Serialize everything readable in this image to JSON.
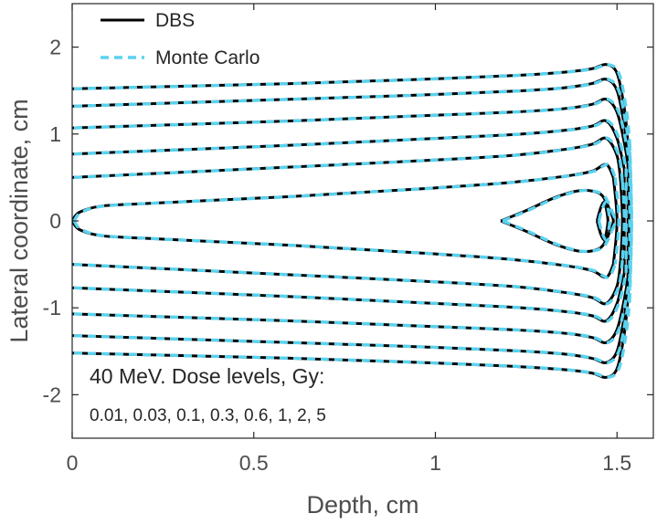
{
  "chart_data": {
    "type": "line",
    "xlabel": "Depth, cm",
    "ylabel": "Lateral coordinate, cm",
    "xlim": [
      0,
      1.6
    ],
    "ylim": [
      -2.5,
      2.5
    ],
    "xticks": [
      {
        "value": 0,
        "label": "0"
      },
      {
        "value": 0.5,
        "label": "0.5"
      },
      {
        "value": 1,
        "label": "1"
      },
      {
        "value": 1.5,
        "label": "1.5"
      }
    ],
    "yticks": [
      {
        "value": 2,
        "label": "2"
      },
      {
        "value": 1,
        "label": "1"
      },
      {
        "value": 0,
        "label": "0"
      },
      {
        "value": -1,
        "label": "-1"
      },
      {
        "value": -2,
        "label": "-2"
      }
    ],
    "grid": false,
    "legend_position": "top-left",
    "annotation_line1": "40 MeV. Dose levels, Gy:",
    "annotation_line2": "0.01, 0.03, 0.1, 0.3, 0.6, 1, 2, 5",
    "series": [
      {
        "name": "DBS",
        "color": "#000000",
        "style": "solid",
        "offset": 0
      },
      {
        "name": "Monte Carlo",
        "color": "#5ad2ee",
        "style": "dashed",
        "offset": 0.005
      }
    ],
    "contours": [
      {
        "level": "0.01",
        "x": [
          0,
          0.3,
          0.6,
          0.9,
          1.2,
          1.35,
          1.43,
          1.47,
          1.5,
          1.52,
          1.53
        ],
        "y": [
          1.52,
          1.55,
          1.58,
          1.62,
          1.67,
          1.71,
          1.75,
          1.8,
          1.7,
          1.3,
          0.9
        ]
      },
      {
        "level": "0.03",
        "x": [
          0,
          0.3,
          0.6,
          0.9,
          1.2,
          1.35,
          1.43,
          1.47,
          1.5,
          1.52,
          1.53
        ],
        "y": [
          1.32,
          1.36,
          1.4,
          1.44,
          1.49,
          1.53,
          1.58,
          1.63,
          1.5,
          1.1,
          0.8
        ]
      },
      {
        "level": "0.1",
        "x": [
          0,
          0.3,
          0.6,
          0.9,
          1.2,
          1.35,
          1.43,
          1.47,
          1.5,
          1.52,
          1.53
        ],
        "y": [
          1.07,
          1.11,
          1.15,
          1.2,
          1.25,
          1.29,
          1.34,
          1.4,
          1.25,
          0.9,
          0.65
        ]
      },
      {
        "level": "0.3",
        "x": [
          0,
          0.3,
          0.6,
          0.9,
          1.2,
          1.35,
          1.43,
          1.47,
          1.5,
          1.52
        ],
        "y": [
          0.77,
          0.82,
          0.87,
          0.93,
          0.99,
          1.04,
          1.09,
          1.15,
          0.95,
          0.6
        ]
      },
      {
        "level": "0.6",
        "x": [
          0,
          0.3,
          0.6,
          0.9,
          1.2,
          1.35,
          1.43,
          1.47,
          1.5,
          1.51
        ],
        "y": [
          0.5,
          0.56,
          0.62,
          0.68,
          0.75,
          0.82,
          0.88,
          0.95,
          0.75,
          0.45
        ]
      },
      {
        "level": "1",
        "x": [
          0,
          0.02,
          0.08,
          0.2,
          0.4,
          0.6,
          0.8,
          1.0,
          1.2,
          1.35,
          1.43,
          1.47,
          1.49
        ],
        "y": [
          0,
          0.1,
          0.17,
          0.2,
          0.24,
          0.28,
          0.33,
          0.38,
          0.44,
          0.51,
          0.57,
          0.65,
          0.5
        ]
      },
      {
        "level": "2",
        "x": [
          1.18,
          1.25,
          1.33,
          1.4,
          1.45,
          1.47,
          1.48
        ],
        "y": [
          0,
          0.12,
          0.27,
          0.35,
          0.32,
          0.22,
          0.12
        ]
      },
      {
        "level": "5",
        "x": [
          1.445,
          1.455,
          1.465,
          1.47
        ],
        "y": [
          0,
          0.15,
          0.22,
          0.15
        ]
      },
      {
        "level": "0.01",
        "x": [
          0,
          0.3,
          0.6,
          0.9,
          1.2,
          1.35,
          1.43,
          1.47,
          1.5,
          1.52,
          1.53
        ],
        "y": [
          -1.52,
          -1.55,
          -1.58,
          -1.62,
          -1.67,
          -1.71,
          -1.75,
          -1.8,
          -1.7,
          -1.3,
          -0.9
        ]
      },
      {
        "level": "0.03",
        "x": [
          0,
          0.3,
          0.6,
          0.9,
          1.2,
          1.35,
          1.43,
          1.47,
          1.5,
          1.52,
          1.53
        ],
        "y": [
          -1.32,
          -1.36,
          -1.4,
          -1.44,
          -1.49,
          -1.53,
          -1.58,
          -1.63,
          -1.5,
          -1.1,
          -0.8
        ]
      },
      {
        "level": "0.1",
        "x": [
          0,
          0.3,
          0.6,
          0.9,
          1.2,
          1.35,
          1.43,
          1.47,
          1.5,
          1.52,
          1.53
        ],
        "y": [
          -1.07,
          -1.11,
          -1.15,
          -1.2,
          -1.25,
          -1.29,
          -1.34,
          -1.4,
          -1.25,
          -0.9,
          -0.65
        ]
      },
      {
        "level": "0.3",
        "x": [
          0,
          0.3,
          0.6,
          0.9,
          1.2,
          1.35,
          1.43,
          1.47,
          1.5,
          1.52
        ],
        "y": [
          -0.77,
          -0.82,
          -0.87,
          -0.93,
          -0.99,
          -1.04,
          -1.09,
          -1.15,
          -0.95,
          -0.6
        ]
      },
      {
        "level": "0.6",
        "x": [
          0,
          0.3,
          0.6,
          0.9,
          1.2,
          1.35,
          1.43,
          1.47,
          1.5,
          1.51
        ],
        "y": [
          -0.5,
          -0.56,
          -0.62,
          -0.68,
          -0.75,
          -0.82,
          -0.88,
          -0.95,
          -0.75,
          -0.45
        ]
      },
      {
        "level": "1",
        "x": [
          0,
          0.02,
          0.08,
          0.2,
          0.4,
          0.6,
          0.8,
          1.0,
          1.2,
          1.35,
          1.43,
          1.47,
          1.49
        ],
        "y": [
          0,
          -0.1,
          -0.17,
          -0.2,
          -0.24,
          -0.28,
          -0.33,
          -0.38,
          -0.44,
          -0.51,
          -0.57,
          -0.65,
          -0.5
        ]
      },
      {
        "level": "2",
        "x": [
          1.18,
          1.25,
          1.33,
          1.4,
          1.45,
          1.47,
          1.48
        ],
        "y": [
          0,
          -0.12,
          -0.27,
          -0.35,
          -0.32,
          -0.22,
          -0.12
        ]
      },
      {
        "level": "5",
        "x": [
          1.445,
          1.455,
          1.465,
          1.47
        ],
        "y": [
          0,
          -0.15,
          -0.22,
          -0.15
        ]
      },
      {
        "level": "0.01",
        "x": [
          1.53,
          1.535,
          1.53
        ],
        "y": [
          0.9,
          0,
          -0.9
        ]
      },
      {
        "level": "0.03",
        "x": [
          1.53,
          1.535,
          1.53
        ],
        "y": [
          0.8,
          0,
          -0.8
        ]
      },
      {
        "level": "0.1",
        "x": [
          1.53,
          1.53,
          1.53
        ],
        "y": [
          0.65,
          0,
          -0.65
        ]
      },
      {
        "level": "0.3",
        "x": [
          1.52,
          1.52,
          1.52
        ],
        "y": [
          0.6,
          0,
          -0.6
        ]
      },
      {
        "level": "0.6",
        "x": [
          1.51,
          1.515,
          1.51
        ],
        "y": [
          0.45,
          0,
          -0.45
        ]
      },
      {
        "level": "1",
        "x": [
          1.49,
          1.5,
          1.49
        ],
        "y": [
          0.5,
          0,
          -0.5
        ]
      },
      {
        "level": "2",
        "x": [
          1.48,
          1.49,
          1.48
        ],
        "y": [
          0.12,
          0,
          -0.12
        ]
      },
      {
        "level": "5",
        "x": [
          1.47,
          1.475,
          1.47
        ],
        "y": [
          0.15,
          0,
          -0.15
        ]
      }
    ]
  }
}
